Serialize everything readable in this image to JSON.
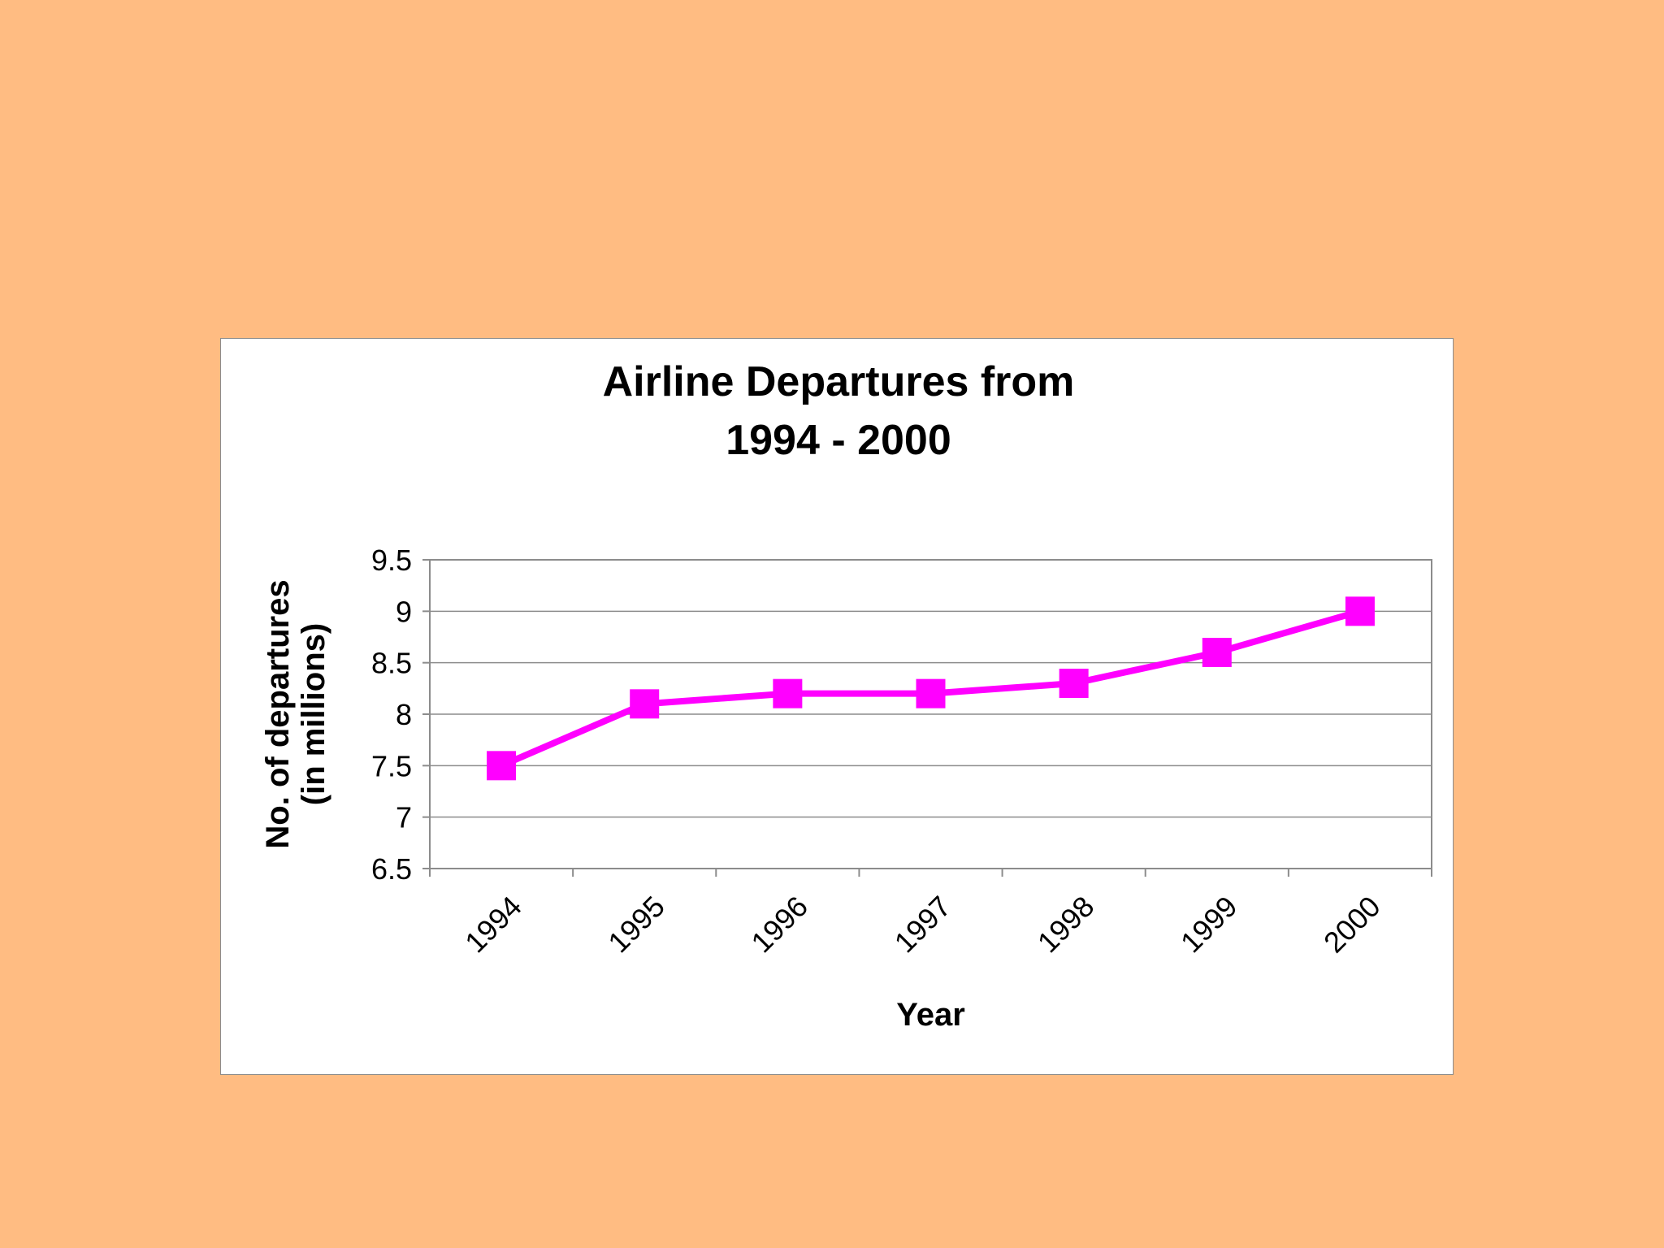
{
  "colors": {
    "background": "#FFBC82",
    "plot_area": "#FFFFFF",
    "series": "#FF00FF",
    "gridline": "#8C8C8C"
  },
  "chart_data": {
    "type": "line",
    "title": [
      "Airline Departures from",
      "1994 - 2000"
    ],
    "xlabel": "Year",
    "ylabel": [
      "No. of departures",
      "(in millions)"
    ],
    "categories": [
      "1994",
      "1995",
      "1996",
      "1997",
      "1998",
      "1999",
      "2000"
    ],
    "series": [
      {
        "values": [
          7.5,
          8.1,
          8.2,
          8.2,
          8.3,
          8.6,
          9.0
        ],
        "marker": "square"
      }
    ],
    "ylim": [
      6.5,
      9.5
    ],
    "yticks": [
      "6.5",
      "7",
      "7.5",
      "8",
      "8.5",
      "9",
      "9.5"
    ],
    "grid": true,
    "legend": "none"
  }
}
